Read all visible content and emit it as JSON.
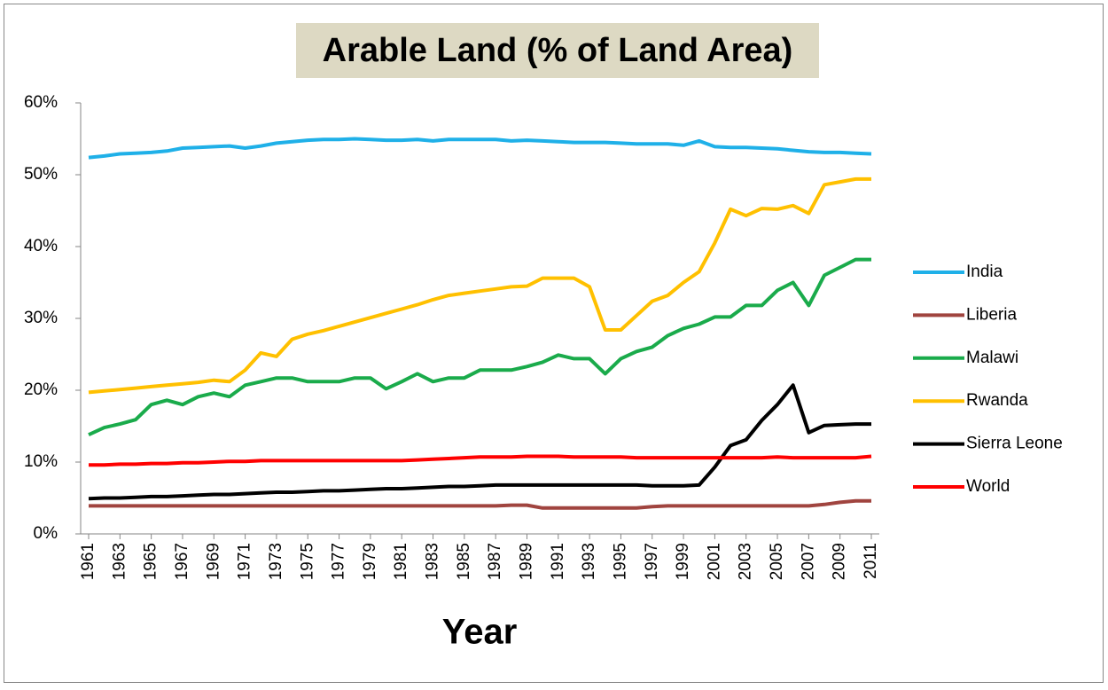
{
  "chart_data": {
    "type": "line",
    "title": "Arable Land (% of Land Area)",
    "x_label": "Year",
    "x": [
      1961,
      1962,
      1963,
      1964,
      1965,
      1966,
      1967,
      1968,
      1969,
      1970,
      1971,
      1972,
      1973,
      1974,
      1975,
      1976,
      1977,
      1978,
      1979,
      1980,
      1981,
      1982,
      1983,
      1984,
      1985,
      1986,
      1987,
      1988,
      1989,
      1990,
      1991,
      1992,
      1993,
      1994,
      1995,
      1996,
      1997,
      1998,
      1999,
      2000,
      2001,
      2002,
      2003,
      2004,
      2005,
      2006,
      2007,
      2008,
      2009,
      2010,
      2011
    ],
    "xlim": [
      1961,
      2011
    ],
    "xticks": [
      1961,
      1963,
      1965,
      1967,
      1969,
      1971,
      1973,
      1975,
      1977,
      1979,
      1981,
      1983,
      1985,
      1987,
      1989,
      1991,
      1993,
      1995,
      1997,
      1999,
      2001,
      2003,
      2005,
      2007,
      2009,
      2011
    ],
    "ylim": [
      0,
      60
    ],
    "yticks": [
      {
        "value": 0,
        "label": "0%"
      },
      {
        "value": 10,
        "label": "10%"
      },
      {
        "value": 20,
        "label": "20%"
      },
      {
        "value": 30,
        "label": "30%"
      },
      {
        "value": 40,
        "label": "40%"
      },
      {
        "value": 50,
        "label": "50%"
      },
      {
        "value": 60,
        "label": "60%"
      }
    ],
    "grid": false,
    "legend": "right",
    "series": [
      {
        "name": "India",
        "color": "#1fb0e8",
        "values": [
          52.4,
          52.6,
          52.9,
          53.0,
          53.1,
          53.3,
          53.7,
          53.8,
          53.9,
          54.0,
          53.7,
          54.0,
          54.4,
          54.6,
          54.8,
          54.9,
          54.9,
          55.0,
          54.9,
          54.8,
          54.8,
          54.9,
          54.7,
          54.9,
          54.9,
          54.9,
          54.9,
          54.7,
          54.8,
          54.7,
          54.6,
          54.5,
          54.5,
          54.5,
          54.4,
          54.3,
          54.3,
          54.3,
          54.1,
          54.7,
          53.9,
          53.8,
          53.8,
          53.7,
          53.6,
          53.4,
          53.2,
          53.1,
          53.1,
          53.0,
          52.9
        ]
      },
      {
        "name": "Liberia",
        "color": "#a0443f",
        "values": [
          3.9,
          3.9,
          3.9,
          3.9,
          3.9,
          3.9,
          3.9,
          3.9,
          3.9,
          3.9,
          3.9,
          3.9,
          3.9,
          3.9,
          3.9,
          3.9,
          3.9,
          3.9,
          3.9,
          3.9,
          3.9,
          3.9,
          3.9,
          3.9,
          3.9,
          3.9,
          3.9,
          4.0,
          4.0,
          3.6,
          3.6,
          3.6,
          3.6,
          3.6,
          3.6,
          3.6,
          3.8,
          3.9,
          3.9,
          3.9,
          3.9,
          3.9,
          3.9,
          3.9,
          3.9,
          3.9,
          3.9,
          4.1,
          4.4,
          4.6,
          4.6
        ]
      },
      {
        "name": "Malawi",
        "color": "#1aab4b",
        "values": [
          13.8,
          14.8,
          15.3,
          15.9,
          18.0,
          18.6,
          18.0,
          19.1,
          19.6,
          19.1,
          20.7,
          21.2,
          21.7,
          21.7,
          21.2,
          21.2,
          21.2,
          21.7,
          21.7,
          20.2,
          21.2,
          22.3,
          21.2,
          21.7,
          21.7,
          22.8,
          22.8,
          22.8,
          23.3,
          23.9,
          24.9,
          24.4,
          24.4,
          22.3,
          24.4,
          25.4,
          26.0,
          27.6,
          28.6,
          29.2,
          30.2,
          30.2,
          31.8,
          31.8,
          33.9,
          35.0,
          31.8,
          36.0,
          37.1,
          38.2,
          38.2
        ]
      },
      {
        "name": "Rwanda",
        "color": "#ffc000",
        "values": [
          19.7,
          19.9,
          20.1,
          20.3,
          20.5,
          20.7,
          20.9,
          21.1,
          21.4,
          21.2,
          22.8,
          25.2,
          24.7,
          27.1,
          27.8,
          28.3,
          28.9,
          29.5,
          30.1,
          30.7,
          31.3,
          31.9,
          32.6,
          33.2,
          33.5,
          33.8,
          34.1,
          34.4,
          34.5,
          35.6,
          35.6,
          35.6,
          34.4,
          28.4,
          28.4,
          30.4,
          32.4,
          33.2,
          35.0,
          36.5,
          40.5,
          45.2,
          44.3,
          45.3,
          45.2,
          45.7,
          44.6,
          48.6,
          49.0,
          49.4,
          49.4
        ]
      },
      {
        "name": "Sierra Leone",
        "color": "#000000",
        "values": [
          4.9,
          5.0,
          5.0,
          5.1,
          5.2,
          5.2,
          5.3,
          5.4,
          5.5,
          5.5,
          5.6,
          5.7,
          5.8,
          5.8,
          5.9,
          6.0,
          6.0,
          6.1,
          6.2,
          6.3,
          6.3,
          6.4,
          6.5,
          6.6,
          6.6,
          6.7,
          6.8,
          6.8,
          6.8,
          6.8,
          6.8,
          6.8,
          6.8,
          6.8,
          6.8,
          6.8,
          6.7,
          6.7,
          6.7,
          6.8,
          9.3,
          12.3,
          13.1,
          15.8,
          18.0,
          20.7,
          14.1,
          15.1,
          15.2,
          15.3,
          15.3
        ]
      },
      {
        "name": "World",
        "color": "#ff0000",
        "values": [
          9.6,
          9.6,
          9.7,
          9.7,
          9.8,
          9.8,
          9.9,
          9.9,
          10.0,
          10.1,
          10.1,
          10.2,
          10.2,
          10.2,
          10.2,
          10.2,
          10.2,
          10.2,
          10.2,
          10.2,
          10.2,
          10.3,
          10.4,
          10.5,
          10.6,
          10.7,
          10.7,
          10.7,
          10.8,
          10.8,
          10.8,
          10.7,
          10.7,
          10.7,
          10.7,
          10.6,
          10.6,
          10.6,
          10.6,
          10.6,
          10.6,
          10.6,
          10.6,
          10.6,
          10.7,
          10.6,
          10.6,
          10.6,
          10.6,
          10.6,
          10.8
        ]
      }
    ]
  }
}
